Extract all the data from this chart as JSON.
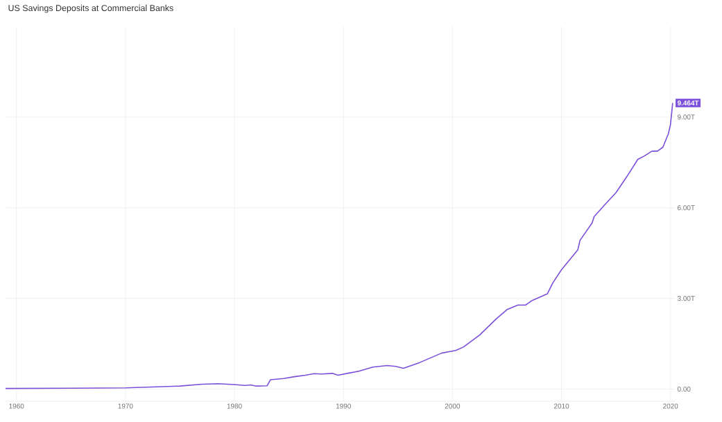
{
  "chart_data": {
    "type": "line",
    "title": "US Savings Deposits at Commercial Banks",
    "x": [
      1959.0,
      1965,
      1970,
      1975,
      1977,
      1978.5,
      1980,
      1981,
      1981.5,
      1982,
      1983.0,
      1983.3,
      1984.5,
      1985.5,
      1986.5,
      1987.3,
      1988,
      1989,
      1989.5,
      1990.5,
      1991.5,
      1992.7,
      1994,
      1994.8,
      1995.5,
      1997,
      1999,
      2000.3,
      2001,
      2002.5,
      2004,
      2005,
      2006,
      2006.7,
      2007.3,
      2008.2,
      2008.7,
      2009.2,
      2010,
      2011.5,
      2011.7,
      2012.8,
      2013,
      2014,
      2015,
      2016,
      2017,
      2017.6,
      2018.3,
      2018.8,
      2019.3,
      2019.8,
      2020.0,
      2020.2
    ],
    "series": [
      {
        "color": "#7b4fd9",
        "values": [
          0.02,
          0.03,
          0.04,
          0.1,
          0.16,
          0.18,
          0.15,
          0.12,
          0.14,
          0.1,
          0.11,
          0.31,
          0.35,
          0.41,
          0.46,
          0.51,
          0.5,
          0.52,
          0.46,
          0.53,
          0.6,
          0.73,
          0.78,
          0.75,
          0.69,
          0.88,
          1.19,
          1.28,
          1.39,
          1.79,
          2.32,
          2.63,
          2.78,
          2.78,
          2.93,
          3.07,
          3.15,
          3.51,
          3.95,
          4.61,
          4.92,
          5.49,
          5.71,
          6.11,
          6.5,
          7.03,
          7.6,
          7.71,
          7.87,
          7.87,
          8.0,
          8.44,
          8.75,
          9.464
        ]
      }
    ],
    "xlim": [
      1959.0,
      2020.4
    ],
    "ylim": [
      -0.4,
      12.0
    ],
    "xticks": [
      1960,
      1970,
      1980,
      1990,
      2000,
      2010,
      2020
    ],
    "yticks": [
      {
        "value": 0,
        "label": "0.00"
      },
      {
        "value": 3,
        "label": "3.00T"
      },
      {
        "value": 6,
        "label": "6.00T"
      },
      {
        "value": 9,
        "label": "9.00T"
      }
    ],
    "grid": true,
    "annotations": [
      {
        "text": "9.464T",
        "x": 2020.2,
        "y": 9.464
      }
    ]
  }
}
